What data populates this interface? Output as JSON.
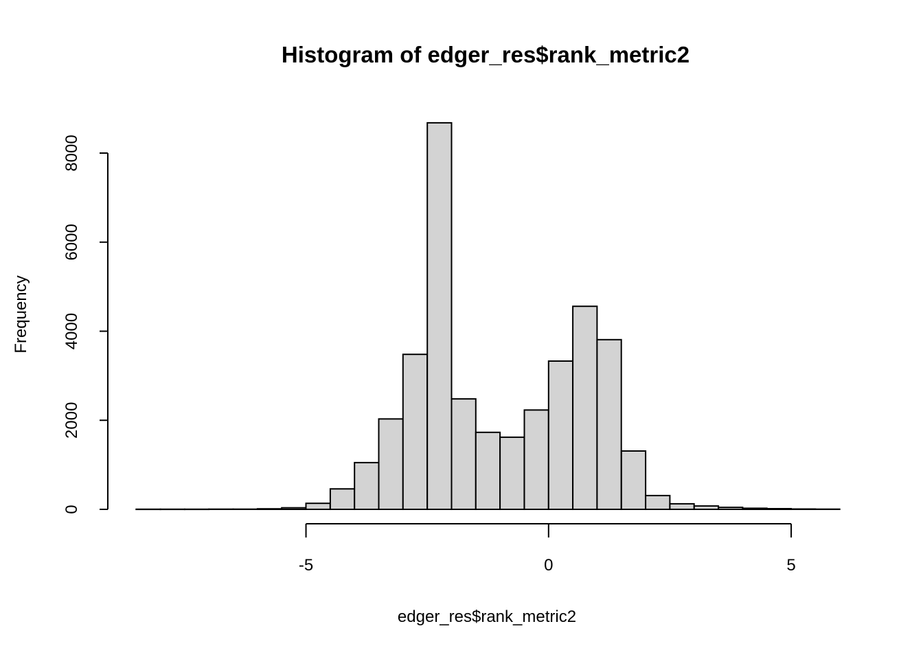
{
  "chart_data": {
    "type": "bar",
    "subtype": "histogram",
    "title": "Histogram of edger_res$rank_metric2",
    "xlabel": "edger_res$rank_metric2",
    "ylabel": "Frequency",
    "bin_start": -8.5,
    "bin_width": 0.5,
    "counts": [
      3,
      3,
      3,
      4,
      5,
      12,
      35,
      135,
      460,
      1050,
      2030,
      3480,
      8680,
      2480,
      1730,
      1620,
      2230,
      3330,
      4560,
      3810,
      1310,
      310,
      125,
      75,
      45,
      25,
      15,
      8,
      5
    ],
    "x_ticks": [
      -5,
      0,
      5
    ],
    "x_tick_labels": [
      "-5",
      "0",
      "5"
    ],
    "y_ticks": [
      0,
      2000,
      4000,
      6000,
      8000
    ],
    "y_tick_labels": [
      "0",
      "2000",
      "4000",
      "6000",
      "8000"
    ],
    "xlim": [
      -8.5,
      6
    ],
    "ylim": [
      0,
      8000
    ],
    "grid": "off",
    "legend": "none",
    "bar_fill": "#D3D3D3",
    "bar_stroke": "#000000",
    "axis_color": "#000000"
  }
}
